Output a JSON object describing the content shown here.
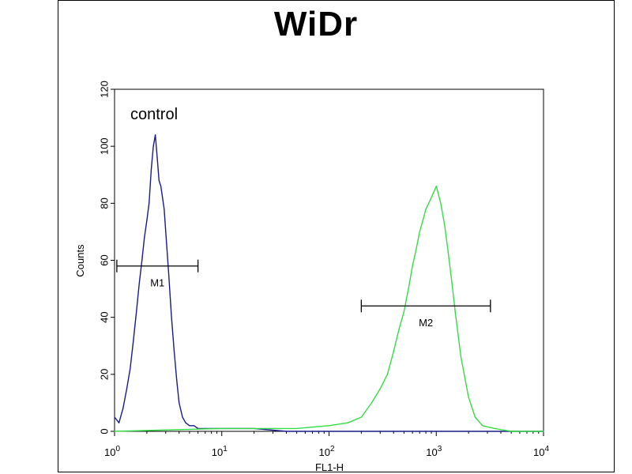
{
  "chart_data": {
    "type": "line",
    "title": "WiDr",
    "xlabel": "FL1-H",
    "ylabel": "Counts",
    "xscale": "log",
    "xlim": [
      1,
      10000
    ],
    "ylim": [
      0,
      120
    ],
    "y_ticks": [
      "0",
      "20",
      "40",
      "60",
      "80",
      "100",
      "120"
    ],
    "x_ticks": [
      {
        "base": "10",
        "exp": "0"
      },
      {
        "base": "10",
        "exp": "1"
      },
      {
        "base": "10",
        "exp": "2"
      },
      {
        "base": "10",
        "exp": "3"
      },
      {
        "base": "10",
        "exp": "4"
      }
    ],
    "annotation": "control",
    "series": [
      {
        "color": "#1a1a8c",
        "x": [
          1.0,
          1.1,
          1.2,
          1.3,
          1.4,
          1.5,
          1.6,
          1.7,
          1.8,
          1.9,
          2.0,
          2.1,
          2.2,
          2.3,
          2.4,
          2.5,
          2.6,
          2.7,
          2.8,
          2.9,
          3.0,
          3.2,
          3.4,
          3.6,
          3.8,
          4.0,
          4.3,
          4.6,
          5.0,
          5.5,
          6.0,
          7.0,
          8.0,
          10,
          15,
          20,
          40,
          80,
          150,
          300,
          1000,
          10000
        ],
        "y": [
          5,
          3,
          8,
          15,
          22,
          32,
          42,
          52,
          60,
          68,
          74,
          80,
          92,
          100,
          104,
          96,
          88,
          86,
          82,
          78,
          70,
          55,
          40,
          28,
          18,
          10,
          5,
          3,
          2,
          2,
          1,
          1,
          1,
          1,
          1,
          1,
          0,
          0,
          0,
          0,
          0,
          0
        ]
      },
      {
        "color": "#33dd44",
        "x": [
          1,
          10,
          50,
          100,
          150,
          200,
          250,
          300,
          350,
          400,
          450,
          500,
          550,
          600,
          650,
          700,
          750,
          800,
          850,
          900,
          950,
          1000,
          1100,
          1200,
          1300,
          1400,
          1500,
          1700,
          2000,
          2300,
          2700,
          3500,
          5000,
          10000
        ],
        "y": [
          0,
          1,
          1,
          2,
          3,
          5,
          10,
          15,
          20,
          28,
          36,
          42,
          50,
          58,
          64,
          70,
          74,
          78,
          80,
          82,
          84,
          86,
          80,
          72,
          62,
          52,
          42,
          26,
          12,
          5,
          2,
          1,
          0,
          0
        ]
      }
    ],
    "markers": [
      {
        "label": "M1",
        "x_from": 1.05,
        "x_to": 6.0,
        "y": 58
      },
      {
        "label": "M2",
        "x_from": 200,
        "x_to": 3200,
        "y": 44
      }
    ]
  }
}
